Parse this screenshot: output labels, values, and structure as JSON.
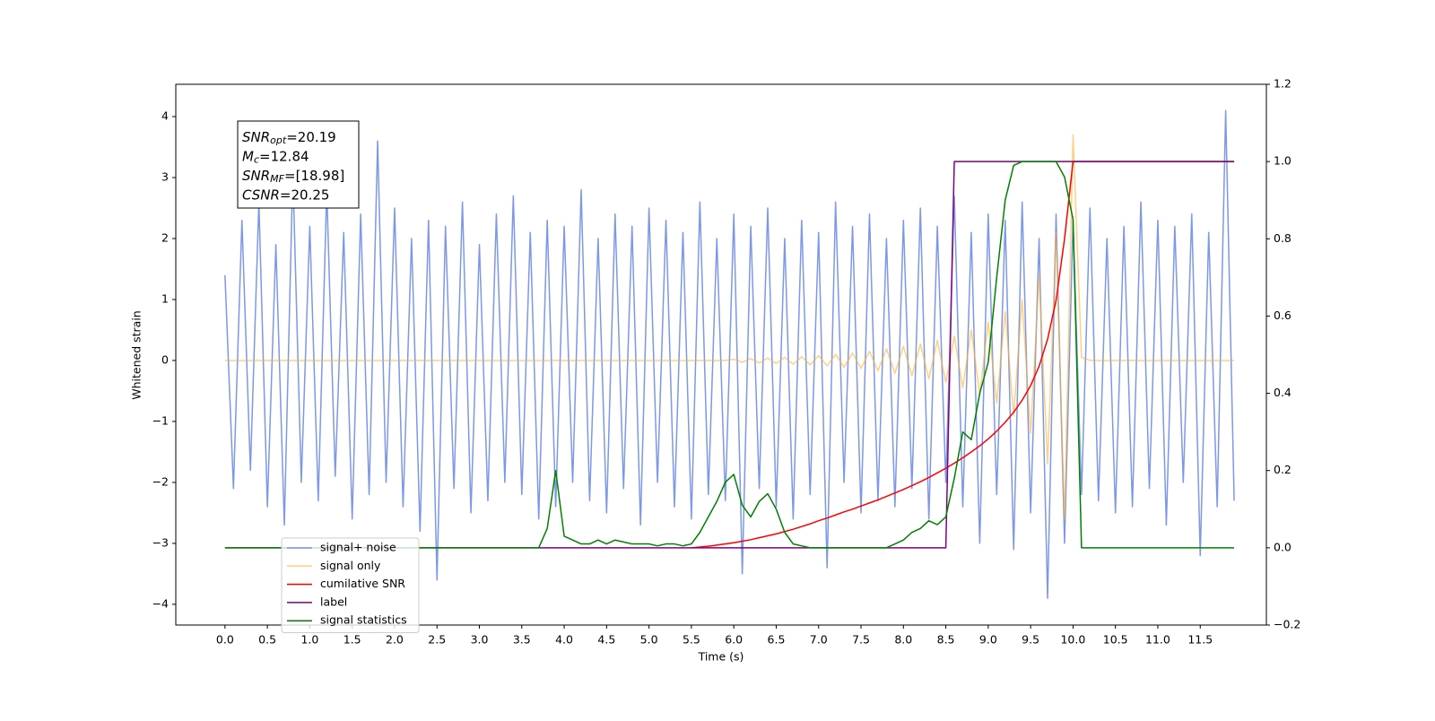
{
  "chart_data": {
    "type": "line",
    "xlabel": "Time (s)",
    "ylabel": "Whitened strain",
    "xlim": [
      -0.58,
      12.28
    ],
    "ylim": [
      -4.34,
      4.53
    ],
    "y2lim": [
      -0.2,
      1.2
    ],
    "xticks": [
      {
        "value": 0,
        "label": "0.0"
      },
      {
        "value": 0.5,
        "label": "0.5"
      },
      {
        "value": 1,
        "label": "1.0"
      },
      {
        "value": 1.5,
        "label": "1.5"
      },
      {
        "value": 2,
        "label": "2.0"
      },
      {
        "value": 2.5,
        "label": "2.5"
      },
      {
        "value": 3,
        "label": "3.0"
      },
      {
        "value": 3.5,
        "label": "3.5"
      },
      {
        "value": 4,
        "label": "4.0"
      },
      {
        "value": 4.5,
        "label": "4.5"
      },
      {
        "value": 5,
        "label": "5.0"
      },
      {
        "value": 5.5,
        "label": "5.5"
      },
      {
        "value": 6,
        "label": "6.0"
      },
      {
        "value": 6.5,
        "label": "6.5"
      },
      {
        "value": 7,
        "label": "7.0"
      },
      {
        "value": 7.5,
        "label": "7.5"
      },
      {
        "value": 8,
        "label": "8.0"
      },
      {
        "value": 8.5,
        "label": "8.5"
      },
      {
        "value": 9,
        "label": "9.0"
      },
      {
        "value": 9.5,
        "label": "9.5"
      },
      {
        "value": 10,
        "label": "10.0"
      },
      {
        "value": 10.5,
        "label": "10.5"
      },
      {
        "value": 11,
        "label": "11.0"
      },
      {
        "value": 11.5,
        "label": "11.5"
      }
    ],
    "yticks": [
      {
        "value": -4,
        "label": "−4"
      },
      {
        "value": -3,
        "label": "−3"
      },
      {
        "value": -2,
        "label": "−2"
      },
      {
        "value": -1,
        "label": "−1"
      },
      0,
      1,
      2,
      3,
      4
    ],
    "y2ticks": [
      {
        "value": -0.2,
        "label": "−0.2"
      },
      {
        "value": 0,
        "label": "0.0"
      },
      0.2,
      0.4,
      0.6,
      0.8,
      {
        "value": 1,
        "label": "1.0"
      },
      1.2
    ],
    "legend": "lower left",
    "annotation": [
      {
        "symbol": "SNR",
        "sub": "opt",
        "text": "=20.19"
      },
      {
        "symbol": "M",
        "sub": "c",
        "text": "=12.84"
      },
      {
        "symbol": "SNR",
        "sub": "MF",
        "text": "=[18.98]"
      },
      {
        "symbol": "CSNR",
        "text": "=20.25"
      }
    ],
    "x": [
      0,
      0.1,
      0.2,
      0.3,
      0.4,
      0.5,
      0.6,
      0.7,
      0.8,
      0.9,
      1,
      1.1,
      1.2,
      1.3,
      1.4,
      1.5,
      1.6,
      1.7,
      1.8,
      1.9,
      2,
      2.1,
      2.2,
      2.3,
      2.4,
      2.5,
      2.6,
      2.7,
      2.8,
      2.9,
      3,
      3.1,
      3.2,
      3.3,
      3.4,
      3.5,
      3.6,
      3.7,
      3.8,
      3.9,
      4,
      4.1,
      4.2,
      4.3,
      4.4,
      4.5,
      4.6,
      4.7,
      4.8,
      4.9,
      5,
      5.1,
      5.2,
      5.3,
      5.4,
      5.5,
      5.6,
      5.7,
      5.8,
      5.9,
      6,
      6.1,
      6.2,
      6.3,
      6.4,
      6.5,
      6.6,
      6.7,
      6.8,
      6.9,
      7,
      7.1,
      7.2,
      7.3,
      7.4,
      7.5,
      7.6,
      7.7,
      7.8,
      7.9,
      8,
      8.1,
      8.2,
      8.3,
      8.4,
      8.5,
      8.6,
      8.7,
      8.8,
      8.9,
      9,
      9.1,
      9.2,
      9.3,
      9.4,
      9.5,
      9.6,
      9.7,
      9.8,
      9.9,
      10,
      10.1,
      10.2,
      10.3,
      10.4,
      10.5,
      10.6,
      10.7,
      10.8,
      10.9,
      11,
      11.1,
      11.2,
      11.3,
      11.4,
      11.5,
      11.6,
      11.7,
      11.8,
      11.9
    ],
    "series": [
      {
        "name": "signal+ noise",
        "color": "#7592e6",
        "axis": "y",
        "values": [
          1.4,
          -2.1,
          2.3,
          -1.8,
          2.6,
          -2.4,
          1.9,
          -2.7,
          3.1,
          -2.0,
          2.2,
          -2.3,
          2.8,
          -1.9,
          2.1,
          -2.6,
          2.4,
          -2.2,
          3.6,
          -2.0,
          2.5,
          -2.4,
          2.0,
          -2.8,
          2.3,
          -3.6,
          2.2,
          -2.1,
          2.6,
          -2.5,
          1.9,
          -2.3,
          2.4,
          -2.0,
          2.7,
          -2.2,
          2.1,
          -2.6,
          2.3,
          -2.4,
          2.2,
          -2.0,
          2.8,
          -2.3,
          2.0,
          -2.5,
          2.4,
          -2.1,
          2.2,
          -2.7,
          2.5,
          -2.0,
          2.3,
          -2.4,
          2.1,
          -2.6,
          2.6,
          -2.2,
          2.0,
          -2.3,
          2.4,
          -3.5,
          2.2,
          -2.1,
          2.5,
          -2.4,
          2.0,
          -2.6,
          2.3,
          -2.2,
          2.1,
          -3.4,
          2.6,
          -2.0,
          2.2,
          -2.5,
          2.4,
          -2.3,
          2.0,
          -2.4,
          2.3,
          -2.1,
          2.5,
          -2.6,
          2.2,
          -2.0,
          2.7,
          -2.4,
          2.1,
          -3.0,
          2.4,
          -2.2,
          2.3,
          -3.1,
          2.6,
          -2.5,
          2.0,
          -3.9,
          2.4,
          -3.0,
          2.3,
          -2.2,
          2.5,
          -2.3,
          2.0,
          -2.5,
          2.2,
          -2.4,
          2.6,
          -2.1,
          2.3,
          -2.7,
          2.2,
          -2.0,
          2.4,
          -3.2,
          2.1,
          -2.4,
          4.1,
          -2.3
        ]
      },
      {
        "name": "signal only",
        "color": "#ffb030",
        "axis": "y",
        "values": [
          0,
          0,
          0,
          0,
          0,
          0,
          0,
          0,
          0,
          0,
          0,
          0,
          0,
          0,
          0,
          0,
          0,
          0,
          0,
          0,
          0,
          0,
          0,
          0,
          0,
          0,
          0,
          0,
          0,
          0,
          0,
          0,
          0,
          0,
          0,
          0,
          0,
          0,
          0,
          0,
          0,
          0,
          0,
          0,
          0,
          0,
          0,
          0,
          0,
          0,
          0,
          0,
          0,
          0,
          0,
          0,
          0,
          0,
          0,
          0,
          0.02,
          -0.03,
          0.03,
          -0.04,
          0.04,
          -0.05,
          0.05,
          -0.06,
          0.06,
          -0.07,
          0.08,
          -0.09,
          0.1,
          -0.11,
          0.12,
          -0.13,
          0.15,
          -0.17,
          0.19,
          -0.21,
          0.23,
          -0.25,
          0.27,
          -0.3,
          0.33,
          -0.36,
          0.4,
          -0.45,
          0.5,
          -0.56,
          0.63,
          -0.7,
          0.8,
          -0.9,
          1.0,
          -1.2,
          1.4,
          -1.7,
          2.1,
          -2.6,
          3.7,
          0.05,
          0,
          0,
          0,
          0,
          0,
          0,
          0,
          0,
          0,
          0,
          0,
          0,
          0,
          0,
          0,
          0,
          0,
          0
        ]
      },
      {
        "name": "cumilative SNR",
        "color": "red",
        "axis": "y2",
        "values": [
          null,
          null,
          null,
          null,
          null,
          null,
          null,
          null,
          null,
          null,
          null,
          null,
          null,
          null,
          null,
          null,
          null,
          null,
          null,
          null,
          null,
          null,
          null,
          null,
          null,
          null,
          null,
          null,
          null,
          null,
          null,
          null,
          null,
          null,
          null,
          null,
          null,
          null,
          null,
          null,
          null,
          null,
          null,
          null,
          null,
          null,
          null,
          null,
          null,
          null,
          null,
          null,
          null,
          null,
          null,
          0,
          0.002,
          0.004,
          0.007,
          0.01,
          0.013,
          0.017,
          0.021,
          0.026,
          0.031,
          0.036,
          0.042,
          0.048,
          0.055,
          0.062,
          0.07,
          0.077,
          0.085,
          0.093,
          0.1,
          0.108,
          0.116,
          0.124,
          0.133,
          0.142,
          0.151,
          0.161,
          0.171,
          0.182,
          0.194,
          0.206,
          0.219,
          0.233,
          0.248,
          0.264,
          0.282,
          0.302,
          0.325,
          0.351,
          0.382,
          0.42,
          0.47,
          0.54,
          0.64,
          0.8,
          1,
          1,
          1,
          1,
          1,
          1,
          1,
          1,
          1,
          1,
          1,
          1,
          1,
          1,
          1,
          1,
          1,
          1,
          1,
          1
        ]
      },
      {
        "name": "label",
        "color": "purple",
        "axis": "y2",
        "values": [
          0,
          0,
          0,
          0,
          0,
          0,
          0,
          0,
          0,
          0,
          0,
          0,
          0,
          0,
          0,
          0,
          0,
          0,
          0,
          0,
          0,
          0,
          0,
          0,
          0,
          0,
          0,
          0,
          0,
          0,
          0,
          0,
          0,
          0,
          0,
          0,
          0,
          0,
          0,
          0,
          0,
          0,
          0,
          0,
          0,
          0,
          0,
          0,
          0,
          0,
          0,
          0,
          0,
          0,
          0,
          0,
          0,
          0,
          0,
          0,
          0,
          0,
          0,
          0,
          0,
          0,
          0,
          0,
          0,
          0,
          0,
          0,
          0,
          0,
          0,
          0,
          0,
          0,
          0,
          0,
          0,
          0,
          0,
          0,
          0,
          0,
          1,
          1,
          1,
          1,
          1,
          1,
          1,
          1,
          1,
          1,
          1,
          1,
          1,
          1,
          1,
          1,
          1,
          1,
          1,
          1,
          1,
          1,
          1,
          1,
          1,
          1,
          1,
          1,
          1,
          1,
          1,
          1,
          1,
          1
        ]
      },
      {
        "name": "signal statistics",
        "color": "green",
        "axis": "y2",
        "values": [
          0,
          0,
          0,
          0,
          0,
          0,
          0,
          0,
          0,
          0,
          0,
          0,
          0,
          0,
          0,
          0,
          0,
          0,
          0,
          0,
          0,
          0,
          0,
          0,
          0,
          0,
          0,
          0,
          0,
          0,
          0,
          0,
          0,
          0,
          0,
          0,
          0,
          0,
          0.05,
          0.2,
          0.03,
          0.02,
          0.01,
          0.01,
          0.02,
          0.01,
          0.02,
          0.015,
          0.01,
          0.01,
          0.01,
          0.005,
          0.01,
          0.01,
          0.005,
          0.01,
          0.04,
          0.08,
          0.12,
          0.17,
          0.19,
          0.11,
          0.08,
          0.12,
          0.14,
          0.1,
          0.04,
          0.01,
          0.005,
          0,
          0,
          0,
          0,
          0,
          0,
          0,
          0,
          0,
          0,
          0.01,
          0.02,
          0.04,
          0.05,
          0.07,
          0.06,
          0.08,
          0.18,
          0.3,
          0.28,
          0.4,
          0.48,
          0.7,
          0.9,
          0.99,
          1,
          1,
          1,
          1,
          1,
          0.96,
          0.85,
          0,
          0,
          0,
          0,
          0,
          0,
          0,
          0,
          0,
          0,
          0,
          0,
          0,
          0,
          0,
          0,
          0,
          0,
          0
        ]
      }
    ]
  }
}
